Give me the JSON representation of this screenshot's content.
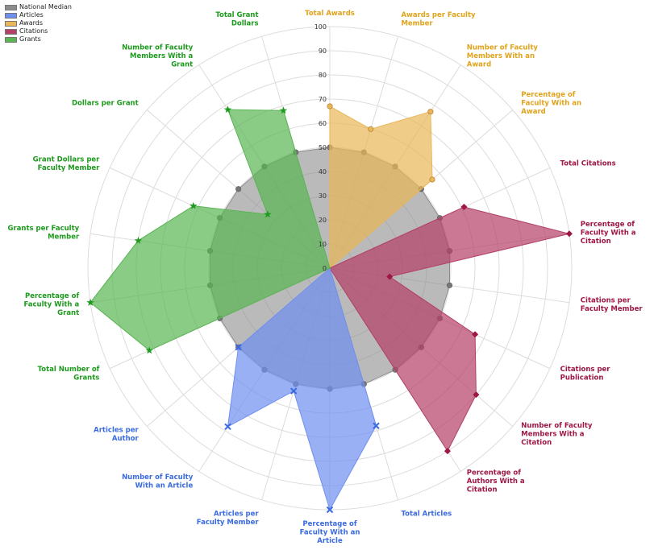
{
  "chart_data": {
    "type": "radar",
    "title": "",
    "rlim": [
      0,
      100
    ],
    "r_ticks": [
      "0",
      "10",
      "20",
      "30",
      "40",
      "50",
      "60",
      "70",
      "80",
      "90",
      "100"
    ],
    "grid": true,
    "legend_position": "top-left",
    "legend": [
      {
        "name": "National Median",
        "color": "#8c8c8c"
      },
      {
        "name": "Articles",
        "color": "#6f8ff0"
      },
      {
        "name": "Awards",
        "color": "#eab657"
      },
      {
        "name": "Citations",
        "color": "#b43f67"
      },
      {
        "name": "Grants",
        "color": "#58b552"
      }
    ],
    "axes": [
      {
        "label": "Total Awards",
        "color": "#e0a31c"
      },
      {
        "label": "Awards per Faculty Member",
        "color": "#e0a31c"
      },
      {
        "label": "Number of Faculty Members With an Award",
        "color": "#e0a31c"
      },
      {
        "label": "Percentage of Faculty With an Award",
        "color": "#e0a31c"
      },
      {
        "label": "Total Citations",
        "color": "#9e1646"
      },
      {
        "label": "Percentage of Faculty With a Citation",
        "color": "#9e1646"
      },
      {
        "label": "Citations per Faculty Member",
        "color": "#9e1646"
      },
      {
        "label": "Citations per Publication",
        "color": "#9e1646"
      },
      {
        "label": "Number of Faculty Members With a Citation",
        "color": "#9e1646"
      },
      {
        "label": "Percentage of Authors With a Citation",
        "color": "#9e1646"
      },
      {
        "label": "Total Articles",
        "color": "#3a6ae0"
      },
      {
        "label": "Percentage of Faculty With an Article",
        "color": "#3a6ae0"
      },
      {
        "label": "Articles per Faculty Member",
        "color": "#3a6ae0"
      },
      {
        "label": "Number of Faculty With an Article",
        "color": "#3a6ae0"
      },
      {
        "label": "Articles per Author",
        "color": "#3a6ae0"
      },
      {
        "label": "Total Number of Grants",
        "color": "#1d9a1d"
      },
      {
        "label": "Percentage of Faculty With a Grant",
        "color": "#1d9a1d"
      },
      {
        "label": "Grants per Faculty Member",
        "color": "#1d9a1d"
      },
      {
        "label": "Grant Dollars per Faculty Member",
        "color": "#1d9a1d"
      },
      {
        "label": "Dollars per Grant",
        "color": "#1d9a1d"
      },
      {
        "label": "Number of Faculty Members With a Grant",
        "color": "#1d9a1d"
      },
      {
        "label": "Total Grant Dollars",
        "color": "#1d9a1d"
      }
    ],
    "series": [
      {
        "name": "National Median",
        "color": "#8c8c8c",
        "values": [
          50,
          50,
          50,
          50,
          50,
          50,
          50,
          50,
          50,
          50,
          50,
          50,
          50,
          50,
          50,
          50,
          50,
          50,
          50,
          50,
          50,
          50
        ]
      },
      {
        "name": "Awards",
        "color": "#eab657",
        "values": [
          67,
          60,
          77,
          56,
          0,
          0,
          0,
          0,
          0,
          0,
          0,
          0,
          0,
          0,
          0,
          0,
          0,
          0,
          0,
          0,
          0,
          0
        ]
      },
      {
        "name": "Citations",
        "color": "#b43f67",
        "values": [
          0,
          0,
          0,
          0,
          61,
          100,
          25,
          66,
          80,
          90,
          0,
          0,
          0,
          0,
          0,
          0,
          0,
          0,
          0,
          0,
          0,
          0
        ]
      },
      {
        "name": "Articles",
        "color": "#6f8ff0",
        "values": [
          0,
          0,
          0,
          0,
          0,
          0,
          0,
          0,
          0,
          0,
          68,
          100,
          53,
          78,
          50,
          0,
          0,
          0,
          0,
          0,
          0,
          0
        ]
      },
      {
        "name": "Grants",
        "color": "#58b552",
        "values": [
          0,
          0,
          0,
          0,
          0,
          0,
          0,
          0,
          0,
          0,
          0,
          0,
          0,
          0,
          0,
          82,
          100,
          80,
          62,
          34,
          78,
          68
        ]
      }
    ]
  }
}
